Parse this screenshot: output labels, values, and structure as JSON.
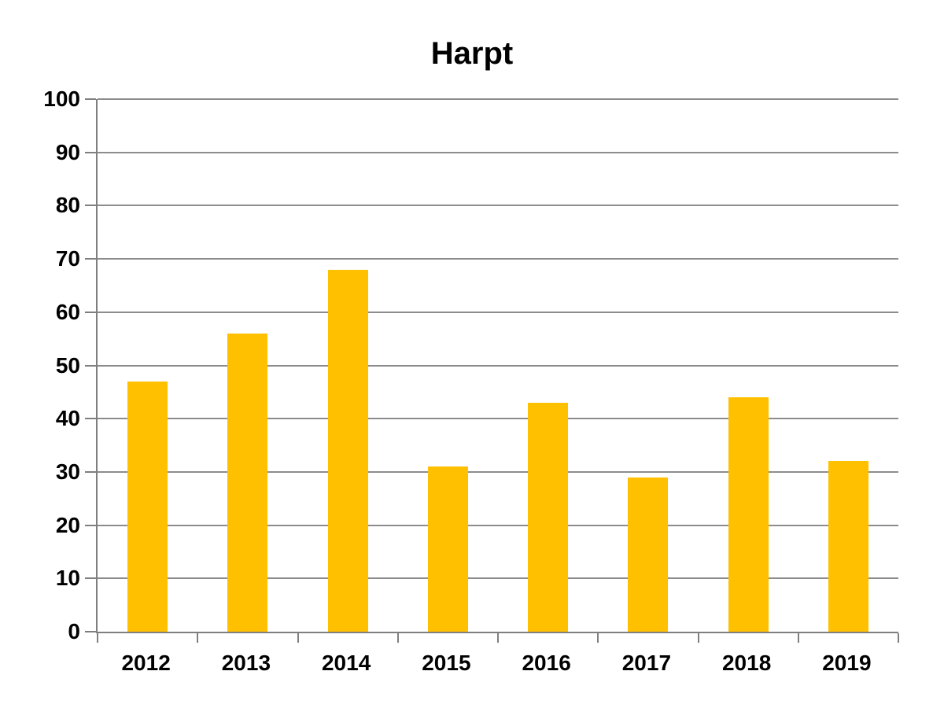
{
  "chart_data": {
    "type": "bar",
    "title": "Harpt",
    "categories": [
      "2012",
      "2013",
      "2014",
      "2015",
      "2016",
      "2017",
      "2018",
      "2019"
    ],
    "values": [
      47,
      56,
      68,
      31,
      43,
      29,
      44,
      32
    ],
    "xlabel": "",
    "ylabel": "",
    "ylim": [
      0,
      100
    ],
    "yticks": [
      0,
      10,
      20,
      30,
      40,
      50,
      60,
      70,
      80,
      90,
      100
    ],
    "grid": true,
    "legend": "none",
    "bar_color": "#FFC000",
    "axis_color": "#7F7F7F",
    "gridline_color": "#8C8C8C",
    "text_color": "#000000",
    "background_color": "#FFFFFF",
    "bar_width_fraction_of_category": 0.4
  }
}
